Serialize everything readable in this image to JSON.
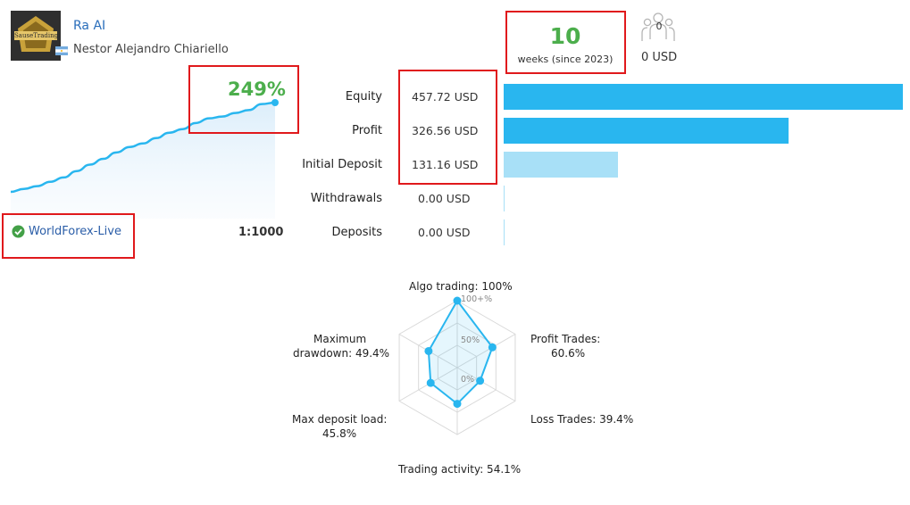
{
  "signal": {
    "name": "Ra AI",
    "author": "Nestor Alejandro Chiariello",
    "avatar_text": "SauseTrading",
    "growth": "249%",
    "broker": "WorldForex-Live",
    "leverage": "1:1000",
    "growth_curve": [
      0,
      8,
      16,
      28,
      40,
      58,
      76,
      92,
      110,
      125,
      135,
      150,
      165,
      175,
      192,
      205,
      210,
      220,
      228,
      245,
      249
    ]
  },
  "weeks": {
    "value": "10",
    "label": "weeks (since 2023)"
  },
  "subscribers": {
    "count": "0",
    "cost": "0 USD"
  },
  "stats": [
    {
      "label": "Equity",
      "value": "457.72 USD",
      "amount": 457.72,
      "color": "#29b6ef"
    },
    {
      "label": "Profit",
      "value": "326.56 USD",
      "amount": 326.56,
      "color": "#29b6ef"
    },
    {
      "label": "Initial Deposit",
      "value": "131.16 USD",
      "amount": 131.16,
      "color": "#a8e0f7"
    },
    {
      "label": "Withdrawals",
      "value": "0.00 USD",
      "amount": 0,
      "color": "#a8e0f7"
    },
    {
      "label": "Deposits",
      "value": "0.00 USD",
      "amount": 0,
      "color": "#a8e0f7"
    }
  ],
  "radar": {
    "scale_labels": [
      "100+%",
      "50%",
      "0%"
    ],
    "labels": {
      "algo": "Algo trading: 100%",
      "profit_1": "Profit Trades:",
      "profit_2": "60.6%",
      "loss": "Loss Trades: 39.4%",
      "activity": "Trading activity: 54.1%",
      "deposit_1": "Max deposit load:",
      "deposit_2": "45.8%",
      "drawdown_1": "Maximum",
      "drawdown_2": "drawdown: 49.4%"
    },
    "axes": [
      {
        "name": "Algo trading",
        "value": 100
      },
      {
        "name": "Profit Trades",
        "value": 60.6
      },
      {
        "name": "Loss Trades",
        "value": 39.4
      },
      {
        "name": "Trading activity",
        "value": 54.1
      },
      {
        "name": "Max deposit load",
        "value": 45.8
      },
      {
        "name": "Maximum drawdown",
        "value": 49.4
      }
    ]
  }
}
